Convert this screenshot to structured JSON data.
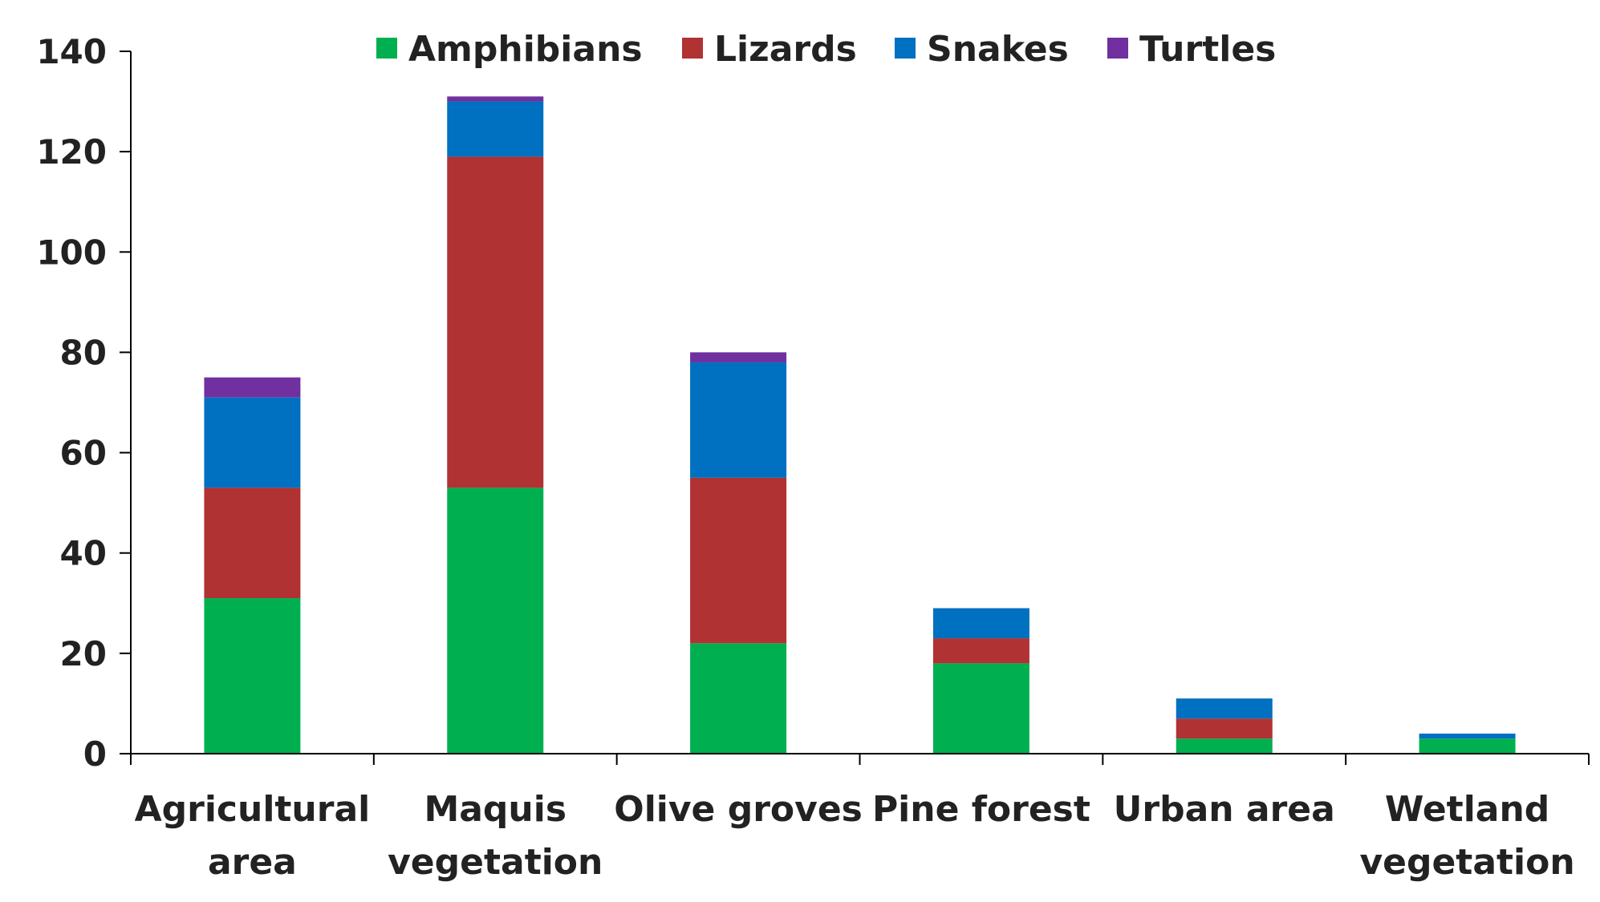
{
  "chart_data": {
    "type": "bar",
    "stacked": true,
    "title": "",
    "xlabel": "",
    "ylabel": "",
    "ylim": [
      0,
      140
    ],
    "y_ticks": [
      0,
      20,
      40,
      60,
      80,
      100,
      120,
      140
    ],
    "grid": false,
    "legend_position": "top",
    "categories": [
      [
        "Agricultural",
        "area"
      ],
      [
        "Maquis",
        "vegetation"
      ],
      [
        "Olive groves"
      ],
      [
        "Pine forest"
      ],
      [
        "Urban area"
      ],
      [
        "Wetland",
        "vegetation"
      ]
    ],
    "series": [
      {
        "name": "Amphibians",
        "color": "#00b050",
        "values": [
          31,
          53,
          22,
          18,
          3,
          3
        ]
      },
      {
        "name": "Lizards",
        "color": "#b03232",
        "values": [
          22,
          66,
          33,
          5,
          4,
          0
        ]
      },
      {
        "name": "Snakes",
        "color": "#0070c0",
        "values": [
          18,
          11,
          23,
          6,
          4,
          1
        ]
      },
      {
        "name": "Turtles",
        "color": "#7030a0",
        "values": [
          4,
          1,
          2,
          0,
          0,
          0
        ]
      }
    ]
  }
}
